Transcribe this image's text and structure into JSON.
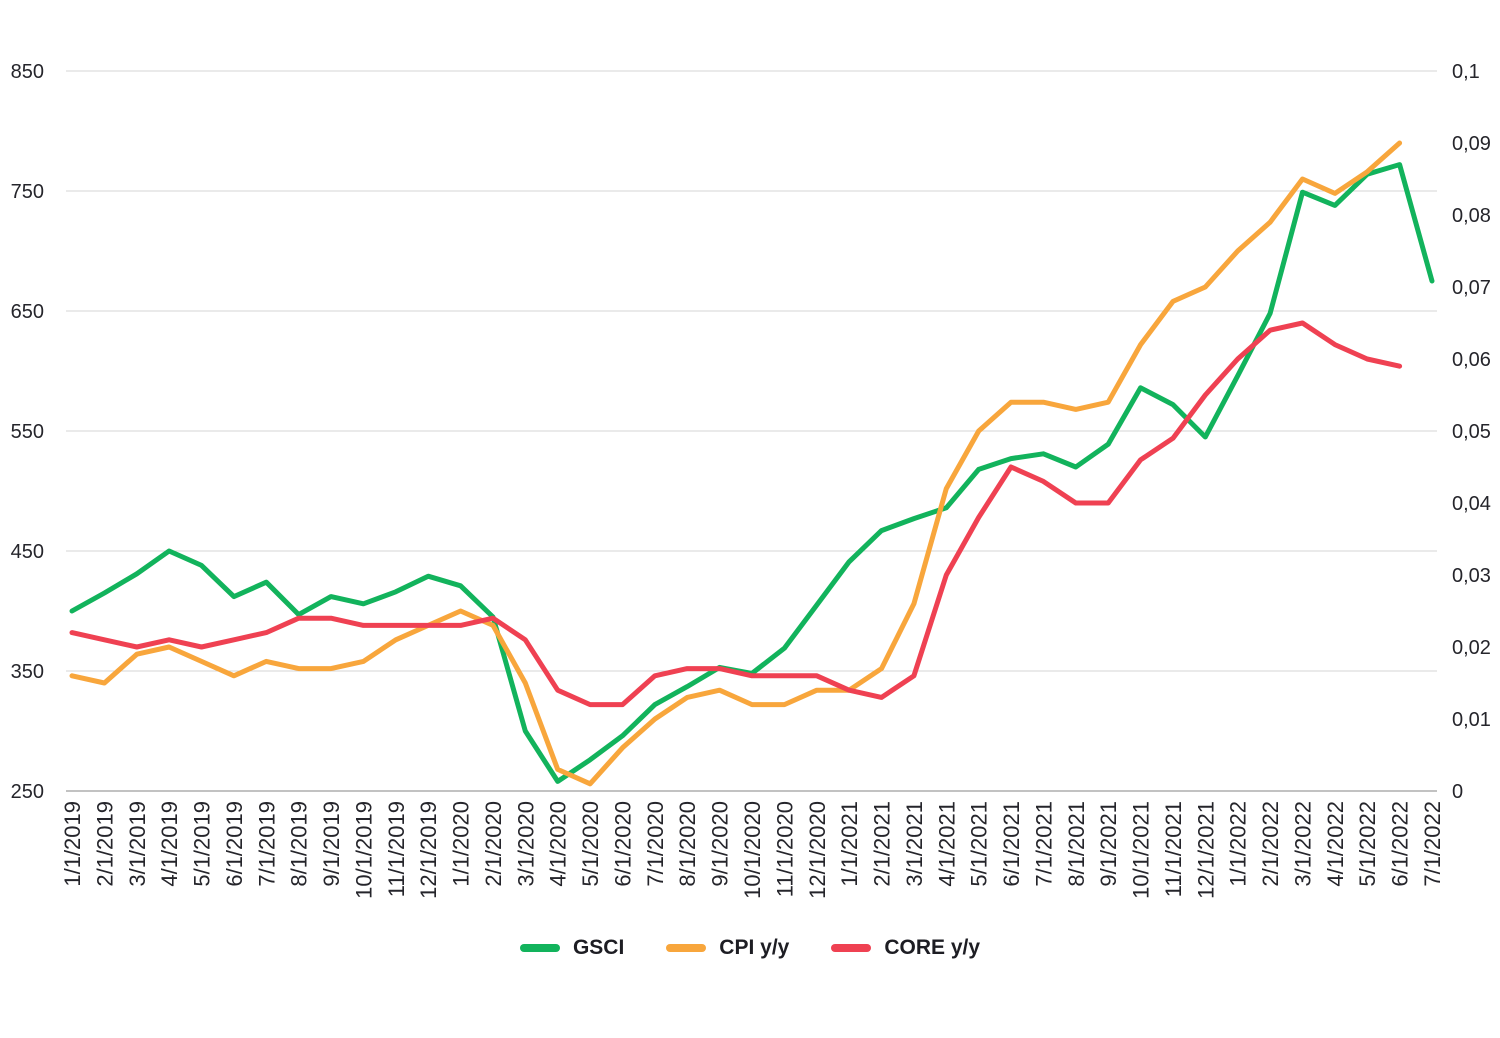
{
  "page": {
    "background_color": "#ffffff"
  },
  "chart_data": {
    "type": "line",
    "title": "",
    "x": [
      "1/1/2019",
      "2/1/2019",
      "3/1/2019",
      "4/1/2019",
      "5/1/2019",
      "6/1/2019",
      "7/1/2019",
      "8/1/2019",
      "9/1/2019",
      "10/1/2019",
      "11/1/2019",
      "12/1/2019",
      "1/1/2020",
      "2/1/2020",
      "3/1/2020",
      "4/1/2020",
      "5/1/2020",
      "6/1/2020",
      "7/1/2020",
      "8/1/2020",
      "9/1/2020",
      "10/1/2020",
      "11/1/2020",
      "12/1/2020",
      "1/1/2021",
      "2/1/2021",
      "3/1/2021",
      "4/1/2021",
      "5/1/2021",
      "6/1/2021",
      "7/1/2021",
      "8/1/2021",
      "9/1/2021",
      "10/1/2021",
      "11/1/2021",
      "12/1/2021",
      "1/1/2022",
      "2/1/2022",
      "3/1/2022",
      "4/1/2022",
      "5/1/2022",
      "6/1/2022",
      "7/1/2022"
    ],
    "series": [
      {
        "name": "GSCI",
        "axis": "left",
        "color": "#12b35c",
        "values": [
          400,
          415,
          431,
          450,
          438,
          412,
          424,
          397,
          412,
          406,
          416,
          429,
          421,
          395,
          300,
          258,
          276,
          296,
          322,
          337,
          353,
          348,
          369,
          405,
          441,
          467,
          477,
          486,
          518,
          527,
          531,
          520,
          539,
          586,
          572,
          545,
          596,
          648,
          749,
          738,
          764,
          772,
          675
        ]
      },
      {
        "name": "CPI y/y",
        "axis": "right",
        "color": "#f8a63c",
        "values": [
          0.016,
          0.015,
          0.019,
          0.02,
          0.018,
          0.016,
          0.018,
          0.017,
          0.017,
          0.018,
          0.021,
          0.023,
          0.025,
          0.023,
          0.015,
          0.003,
          0.001,
          0.006,
          0.01,
          0.013,
          0.014,
          0.012,
          0.012,
          0.014,
          0.014,
          0.017,
          0.026,
          0.042,
          0.05,
          0.054,
          0.054,
          0.053,
          0.054,
          0.062,
          0.068,
          0.07,
          0.075,
          0.079,
          0.085,
          0.083,
          0.086,
          0.09,
          null
        ]
      },
      {
        "name": "CORE y/y",
        "axis": "right",
        "color": "#ef4152",
        "values": [
          0.022,
          0.021,
          0.02,
          0.021,
          0.02,
          0.021,
          0.022,
          0.024,
          0.024,
          0.023,
          0.023,
          0.023,
          0.023,
          0.024,
          0.021,
          0.014,
          0.012,
          0.012,
          0.016,
          0.017,
          0.017,
          0.016,
          0.016,
          0.016,
          0.014,
          0.013,
          0.016,
          0.03,
          0.038,
          0.045,
          0.043,
          0.04,
          0.04,
          0.046,
          0.049,
          0.055,
          0.06,
          0.064,
          0.065,
          0.062,
          0.06,
          0.059,
          null
        ]
      }
    ],
    "left_axis": {
      "min": 250,
      "max": 850,
      "ticks": [
        850,
        750,
        650,
        550,
        450,
        350,
        250
      ]
    },
    "right_axis": {
      "min": 0,
      "max": 0.1,
      "step": 0.01,
      "tick_labels": [
        "0,1",
        "0,09",
        "0,08",
        "0,07",
        "0,06",
        "0,05",
        "0,04",
        "0,03",
        "0,02",
        "0,01",
        "0"
      ]
    },
    "grid": "horizontal",
    "legend_position": "bottom",
    "style": {
      "grid_color": "#d6d6d6",
      "axis_line_color": "#c2c2c2",
      "tick_color": "#25252b",
      "line_width": 5
    }
  }
}
